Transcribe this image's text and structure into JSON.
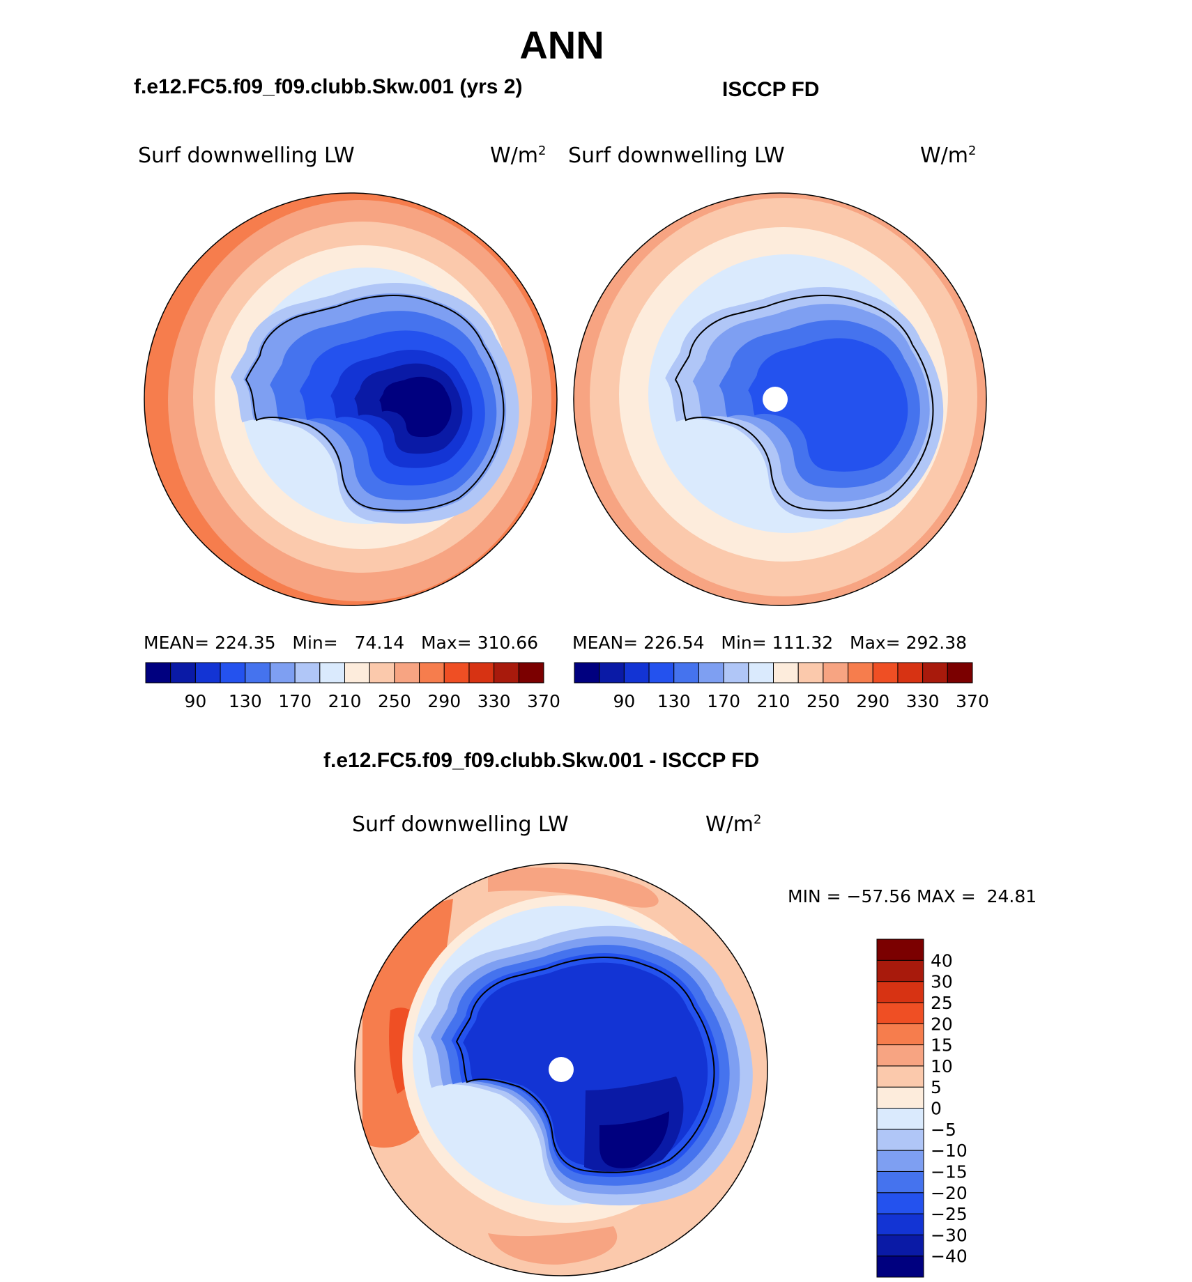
{
  "header": {
    "season": "ANN",
    "left_case": "f.e12.FC5.f09_f09.clubb.Skw.001 (yrs 2)",
    "right_case": "ISCCP FD",
    "diff_case": "f.e12.FC5.f09_f09.clubb.Skw.001 - ISCCP FD"
  },
  "panels": {
    "model": {
      "variable": "Surf  downwelling  LW",
      "units": "W/m",
      "units_sup": "2",
      "stats": {
        "mean_label": "MEAN=",
        "mean": "224.35",
        "min_label": "Min=",
        "min": "74.14",
        "max_label": "Max=",
        "max": "310.66"
      },
      "has_pole_hole": false
    },
    "obs": {
      "variable": "Surf  downwelling  LW",
      "units": "W/m",
      "units_sup": "2",
      "stats": {
        "mean_label": "MEAN=",
        "mean": "226.54",
        "min_label": "Min=",
        "min": "111.32",
        "max_label": "Max=",
        "max": "292.38"
      },
      "has_pole_hole": true
    },
    "diff": {
      "variable": "Surf  downwelling  LW",
      "units": "W/m",
      "units_sup": "2",
      "stats": {
        "min_label": "MIN",
        "eq": "=",
        "min": "−57.56",
        "max_label": "MAX",
        "max": "24.81"
      },
      "has_pole_hole": true
    }
  },
  "colorbars": {
    "abs": {
      "colors": [
        "#00007f",
        "#0a1aa6",
        "#1334d4",
        "#2452ee",
        "#4573ee",
        "#7e9ff2",
        "#b0c6f7",
        "#daeafd",
        "#fdecdc",
        "#fbc9ac",
        "#f7a482",
        "#f67d4d",
        "#ef4f24",
        "#d73313",
        "#a81a0c",
        "#7b0000"
      ],
      "labels": [
        "90",
        "130",
        "170",
        "210",
        "250",
        "290",
        "330",
        "370"
      ]
    },
    "diff": {
      "colors": [
        "#00007f",
        "#0a1aa6",
        "#1334d4",
        "#2452ee",
        "#4573ee",
        "#7e9ff2",
        "#b0c6f7",
        "#daeafd",
        "#fdecdc",
        "#fbc9ac",
        "#f7a482",
        "#f67d4d",
        "#ef4f24",
        "#d73313",
        "#a81a0c",
        "#7b0000"
      ],
      "labels": [
        "−40",
        "−30",
        "−25",
        "−20",
        "−15",
        "−10",
        "−5",
        "0",
        "5",
        "10",
        "15",
        "20",
        "25",
        "30",
        "40"
      ]
    }
  }
}
